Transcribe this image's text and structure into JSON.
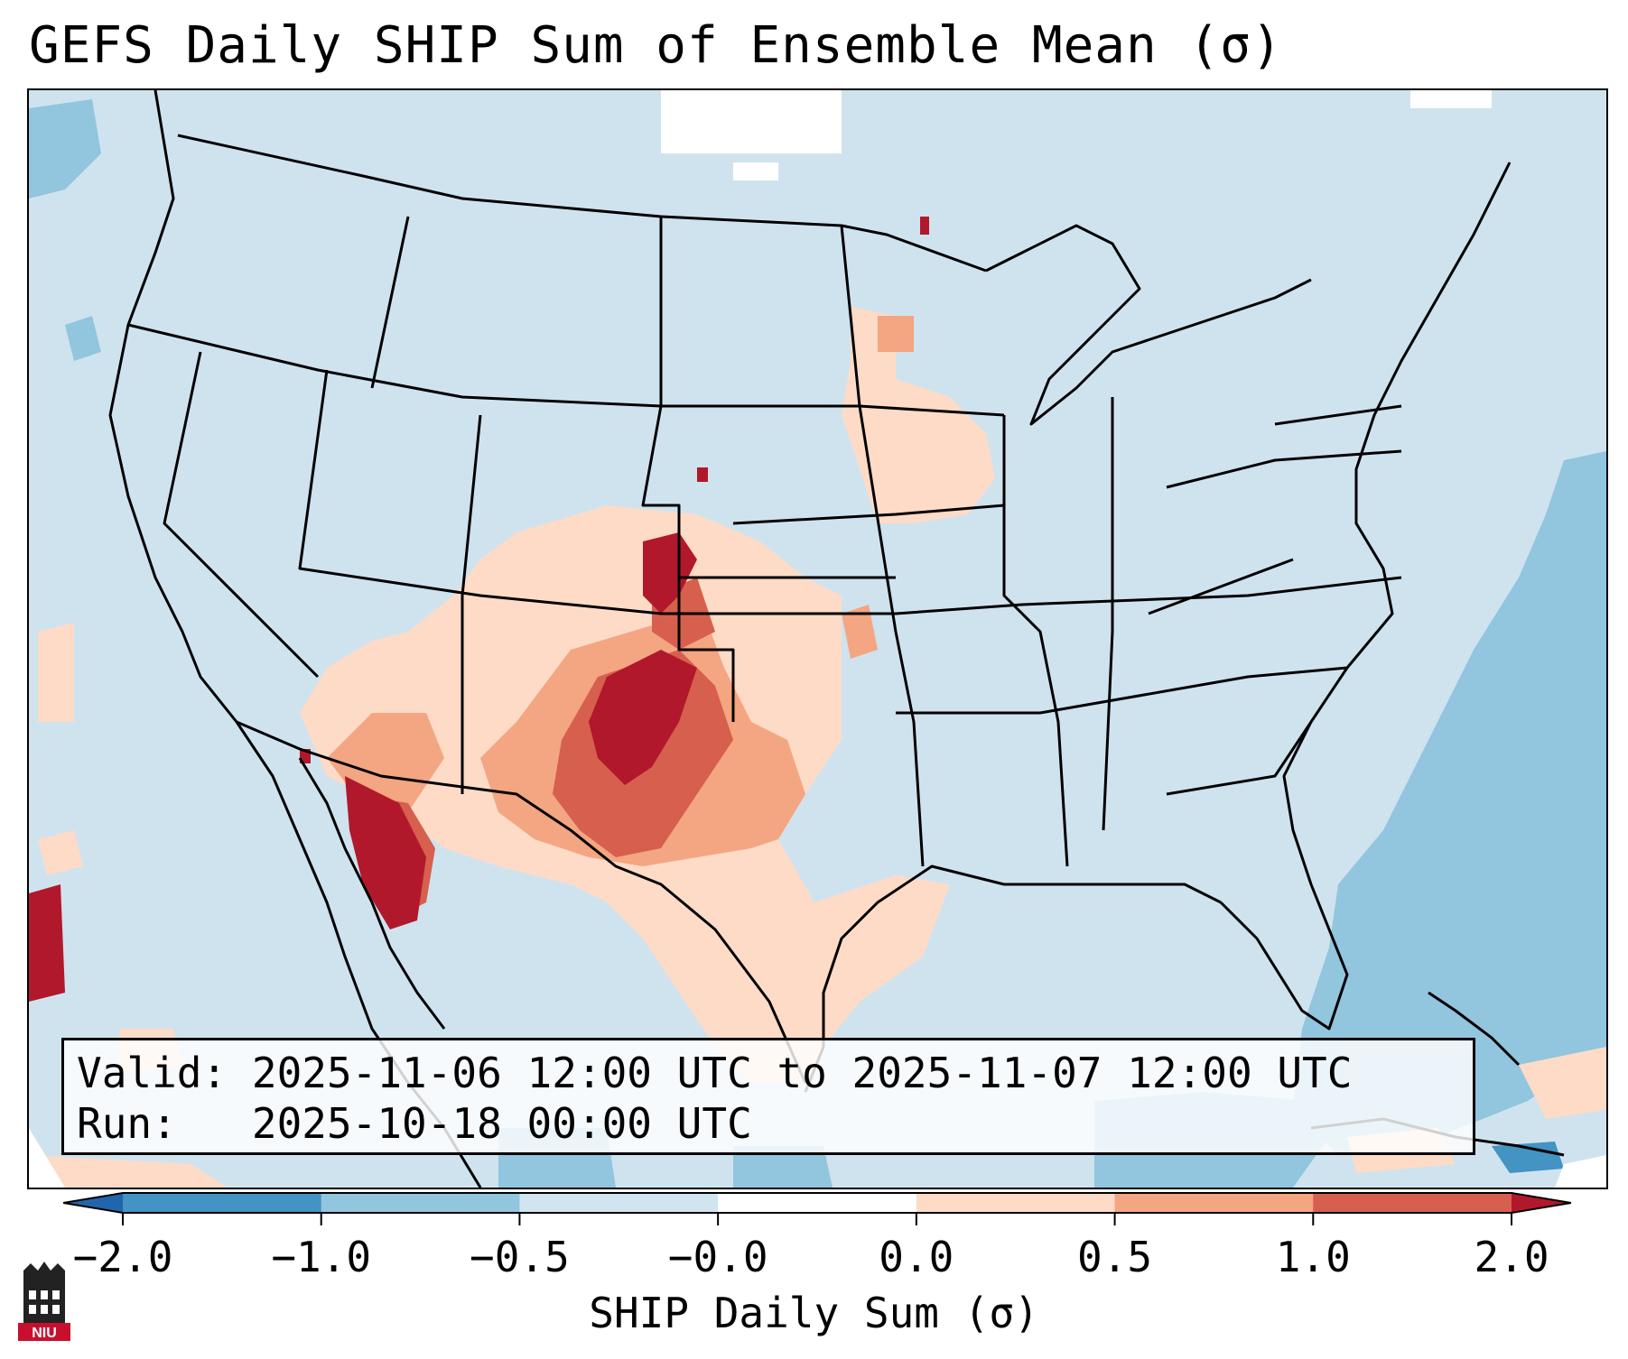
{
  "title": "GEFS Daily SHIP Sum of Ensemble Mean (σ)",
  "info": {
    "valid_label": "Valid:",
    "valid_value": "2025-11-06 12:00 UTC to 2025-11-07 12:00 UTC",
    "run_label": "Run:",
    "run_value": "2025-10-18 00:00 UTC"
  },
  "colorbar": {
    "label": "SHIP Daily Sum (σ)",
    "tick_labels": [
      "−2.0",
      "−1.0",
      "−0.5",
      "−0.0",
      "0.0",
      "0.5",
      "1.0",
      "2.0"
    ],
    "bins": [
      {
        "from": -2.0,
        "to": -1.0,
        "color": "#4393c3"
      },
      {
        "from": -1.0,
        "to": -0.5,
        "color": "#92c5de"
      },
      {
        "from": -0.5,
        "to": -0.0,
        "color": "#d1e5f0"
      },
      {
        "from": -0.0,
        "to": 0.0,
        "color": "#ffffff"
      },
      {
        "from": 0.0,
        "to": 0.5,
        "color": "#fddbc7"
      },
      {
        "from": 0.5,
        "to": 1.0,
        "color": "#f4a582"
      },
      {
        "from": 1.0,
        "to": 2.0,
        "color": "#d6604d"
      }
    ],
    "under_color": "#2166ac",
    "over_color": "#b2182b"
  },
  "colors": {
    "background": "#d1e5f0",
    "low": "#92c5de",
    "light_pos": "#fddbc7",
    "mid_pos": "#f4a582",
    "high_pos": "#d6604d",
    "max_pos": "#b2182b",
    "niu_red": "#c8102e"
  },
  "logo": {
    "text": "NIU",
    "icon": "niu-logo-icon"
  }
}
